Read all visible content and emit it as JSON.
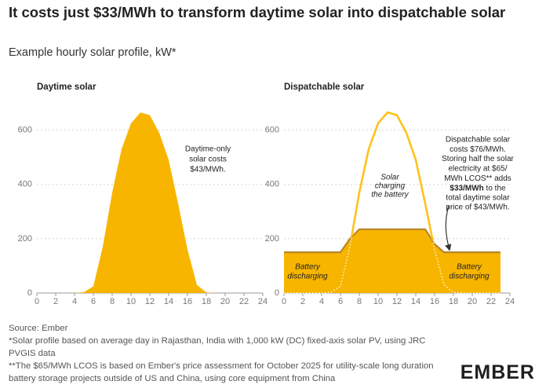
{
  "header": {
    "title": "It costs just $33/MWh to transform daytime solar into dispatchable solar",
    "subtitle": "Example hourly solar profile, kW*"
  },
  "chart_data": [
    {
      "type": "area",
      "title": "Daytime solar",
      "x": [
        0,
        1,
        2,
        3,
        4,
        5,
        6,
        7,
        8,
        9,
        10,
        11,
        12,
        13,
        14,
        15,
        16,
        17,
        18,
        19,
        20,
        21,
        22,
        23
      ],
      "series": [
        {
          "color": "#f7b500",
          "values": [
            0,
            0,
            0,
            0,
            0,
            3,
            25,
            170,
            370,
            530,
            625,
            665,
            655,
            590,
            490,
            330,
            160,
            30,
            2,
            0,
            0,
            0,
            0,
            0
          ]
        }
      ],
      "xlim": [
        0,
        24
      ],
      "xticks": [
        0,
        2,
        4,
        6,
        8,
        10,
        12,
        14,
        16,
        18,
        20,
        22,
        24
      ],
      "ylim": [
        0,
        700
      ],
      "yticks": [
        0,
        200,
        400,
        600
      ],
      "grid": true,
      "annotations": [
        {
          "lines": [
            "Daytime-only",
            "solar costs",
            "$43/MWh."
          ]
        }
      ]
    },
    {
      "type": "dispatch",
      "title": "Dispatchable solar",
      "x": [
        0,
        1,
        2,
        3,
        4,
        5,
        6,
        7,
        8,
        9,
        10,
        11,
        12,
        13,
        14,
        15,
        16,
        17,
        18,
        19,
        20,
        21,
        22,
        23
      ],
      "series": [
        {
          "color": "#ffc21a",
          "values": [
            0,
            0,
            0,
            0,
            0,
            3,
            25,
            170,
            370,
            530,
            625,
            665,
            655,
            590,
            490,
            330,
            160,
            30,
            2,
            0,
            0,
            0,
            0,
            0
          ]
        },
        {
          "color": "#f7b500",
          "line_color": "#b8862a",
          "values": [
            150,
            150,
            150,
            150,
            150,
            150,
            150,
            200,
            235,
            235,
            235,
            235,
            235,
            235,
            235,
            235,
            180,
            150,
            150,
            150,
            150,
            150,
            150,
            150
          ]
        }
      ],
      "xlim": [
        0,
        24
      ],
      "xticks": [
        0,
        2,
        4,
        6,
        8,
        10,
        12,
        14,
        16,
        18,
        20,
        22,
        24
      ],
      "ylim": [
        0,
        700
      ],
      "yticks": [
        0,
        200,
        400,
        600
      ],
      "grid": true,
      "annotations": [
        {
          "lines": [
            "Solar",
            "charging",
            "the battery"
          ]
        },
        {
          "lines": [
            "Battery",
            "discharging"
          ]
        },
        {
          "lines": [
            "Battery",
            "discharging"
          ]
        },
        {
          "lines": [
            "Dispatchable solar",
            "costs $76/MWh.",
            "Storing half the solar",
            "electricity at $65/",
            "MWh LCOS** adds",
            {
              "bold": "$33/MWh",
              "text": " to the"
            },
            "total daytime solar",
            "price of $43/MWh."
          ]
        }
      ]
    }
  ],
  "footer": {
    "notes": [
      "Source: Ember",
      "*Solar profile based on average day in Rajasthan, India with 1,000 kW (DC) fixed-axis solar PV, using JRC PVGIS data",
      "**The $65/MWh LCOS is based on Ember's price assessment for October 2025 for utility-scale long duration battery storage projects outside of US and China, using core equipment from China"
    ],
    "logo": "EMBER"
  }
}
